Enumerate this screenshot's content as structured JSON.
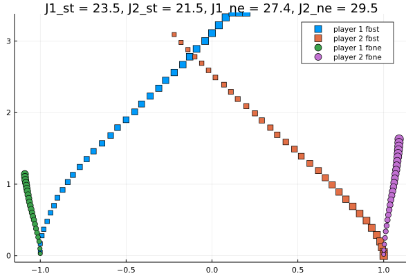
{
  "chart_data": {
    "type": "scatter",
    "title": "J1_st = 23.5, J2_st = 21.5, J1_ne = 27.4, J2_ne = 29.5",
    "xlabel": "",
    "ylabel": "",
    "xlim": [
      -1.15,
      1.13
    ],
    "ylim": [
      -0.09,
      3.38
    ],
    "xticks": [
      -1.0,
      -0.5,
      0.0,
      0.5,
      1.0
    ],
    "xtick_labels": [
      "−1.0",
      "−0.5",
      "0.0",
      "0.5",
      "1.0"
    ],
    "yticks": [
      0,
      1,
      2,
      3
    ],
    "ytick_labels": [
      "0",
      "1",
      "2",
      "3"
    ],
    "grid": true,
    "legend_position": "top-right",
    "series": [
      {
        "name": "player 1 fbst",
        "marker": "square",
        "color": "#009AFA",
        "x": [
          -1.0,
          -1.0,
          -0.99,
          -0.98,
          -0.96,
          -0.94,
          -0.92,
          -0.9,
          -0.87,
          -0.84,
          -0.81,
          -0.77,
          -0.73,
          -0.69,
          -0.64,
          -0.59,
          -0.55,
          -0.5,
          -0.45,
          -0.41,
          -0.36,
          -0.31,
          -0.27,
          -0.22,
          -0.17,
          -0.13,
          -0.09,
          -0.04,
          0.0,
          0.04,
          0.08,
          0.12,
          0.16,
          0.2
        ],
        "y": [
          0.05,
          0.17,
          0.28,
          0.37,
          0.48,
          0.6,
          0.7,
          0.81,
          0.92,
          1.03,
          1.13,
          1.24,
          1.35,
          1.46,
          1.57,
          1.68,
          1.79,
          1.9,
          2.01,
          2.12,
          2.23,
          2.34,
          2.45,
          2.56,
          2.67,
          2.78,
          2.89,
          3.0,
          3.11,
          3.22,
          3.33,
          3.4,
          3.4,
          3.4
        ]
      },
      {
        "name": "player 2 fbst",
        "marker": "square",
        "color": "#E26F46",
        "x": [
          -0.22,
          -0.18,
          -0.14,
          -0.1,
          -0.06,
          -0.02,
          0.02,
          0.07,
          0.11,
          0.15,
          0.2,
          0.25,
          0.29,
          0.34,
          0.38,
          0.43,
          0.48,
          0.52,
          0.57,
          0.62,
          0.66,
          0.7,
          0.74,
          0.78,
          0.82,
          0.86,
          0.9,
          0.93,
          0.96,
          0.98,
          0.99,
          1.0,
          1.0,
          1.0
        ],
        "y": [
          3.09,
          2.98,
          2.88,
          2.78,
          2.69,
          2.59,
          2.49,
          2.39,
          2.29,
          2.19,
          2.09,
          1.99,
          1.89,
          1.79,
          1.69,
          1.59,
          1.49,
          1.39,
          1.29,
          1.19,
          1.09,
          0.99,
          0.89,
          0.79,
          0.69,
          0.59,
          0.49,
          0.39,
          0.29,
          0.2,
          0.12,
          0.05,
          0.02,
          0.0
        ]
      },
      {
        "name": "player 1 fbne",
        "marker": "circle",
        "color": "#3DA44D",
        "x": [
          -1.09,
          -1.089,
          -1.087,
          -1.084,
          -1.081,
          -1.078,
          -1.075,
          -1.071,
          -1.067,
          -1.063,
          -1.058,
          -1.053,
          -1.048,
          -1.043,
          -1.037,
          -1.031,
          -1.025,
          -1.019,
          -1.013,
          -1.007,
          -1.002,
          -1.0
        ],
        "y": [
          1.14,
          1.1,
          1.06,
          1.02,
          0.98,
          0.94,
          0.9,
          0.85,
          0.8,
          0.75,
          0.7,
          0.65,
          0.6,
          0.55,
          0.5,
          0.44,
          0.38,
          0.32,
          0.26,
          0.2,
          0.1,
          0.03
        ]
      },
      {
        "name": "player 2 fbne",
        "marker": "circle",
        "color": "#C271D2",
        "x": [
          1.09,
          1.089,
          1.088,
          1.086,
          1.084,
          1.082,
          1.079,
          1.076,
          1.073,
          1.069,
          1.065,
          1.061,
          1.057,
          1.052,
          1.047,
          1.042,
          1.037,
          1.032,
          1.027,
          1.022,
          1.017,
          1.012,
          1.008,
          1.004,
          1.001,
          1.0
        ],
        "y": [
          1.63,
          1.58,
          1.53,
          1.48,
          1.43,
          1.38,
          1.32,
          1.26,
          1.2,
          1.14,
          1.08,
          1.02,
          0.96,
          0.9,
          0.84,
          0.78,
          0.71,
          0.64,
          0.57,
          0.5,
          0.42,
          0.34,
          0.25,
          0.16,
          0.08,
          0.02
        ]
      }
    ]
  }
}
